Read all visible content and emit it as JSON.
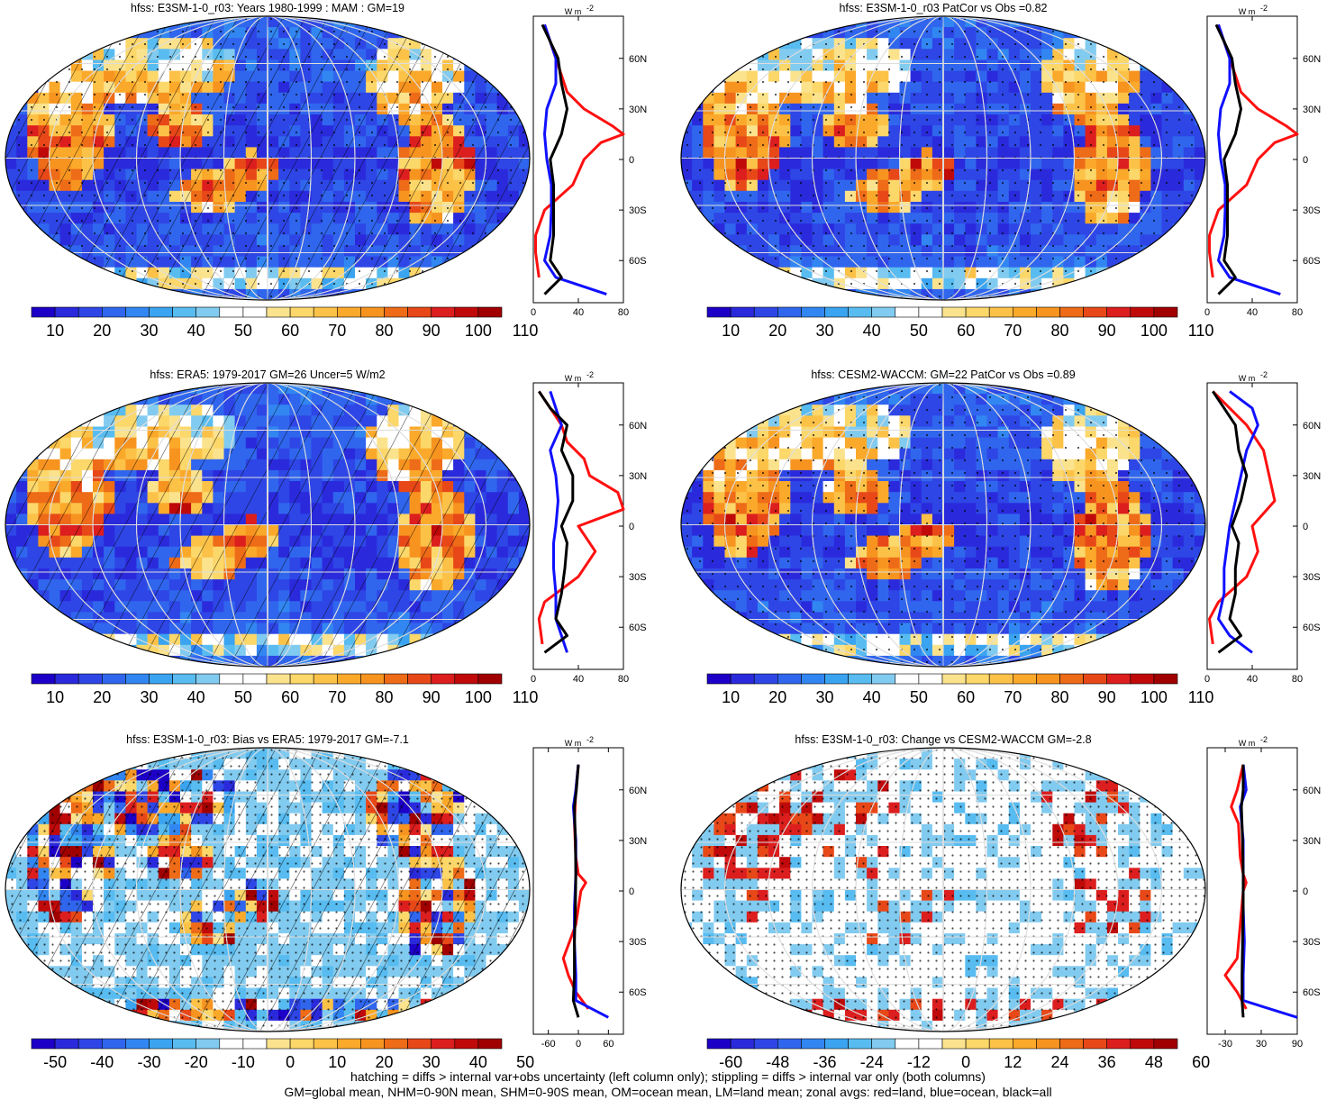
{
  "panels": [
    {
      "title": "hfss: E3SM-1-0_r03: Years 1980-1999 : MAM : GM=19",
      "kind": "clim",
      "hatch": true,
      "stipple": "sparse",
      "profile_ticks": [
        "0",
        "40",
        "80"
      ],
      "profile_range": [
        0,
        80
      ]
    },
    {
      "title": "hfss: E3SM-1-0_r03 PatCor vs Obs =0.82",
      "kind": "clim",
      "hatch": false,
      "stipple": "sparse",
      "profile_ticks": [
        "0",
        "40",
        "80"
      ],
      "profile_range": [
        0,
        80
      ]
    },
    {
      "title": "hfss: ERA5: 1979-2017 GM=26 Uncer=5 W/m2",
      "kind": "clim",
      "hatch": true,
      "stipple": "none",
      "profile_ticks": [
        "0",
        "40",
        "80"
      ],
      "profile_range": [
        0,
        80
      ]
    },
    {
      "title": "hfss: CESM2-WACCM: GM=22 PatCor vs Obs =0.89",
      "kind": "clim",
      "hatch": false,
      "stipple": "sparse",
      "profile_ticks": [
        "0",
        "40",
        "80"
      ],
      "profile_range": [
        0,
        80
      ]
    },
    {
      "title": "hfss: E3SM-1-0_r03: Bias vs ERA5: 1979-2017 GM=-7.1",
      "kind": "diff",
      "hatch": true,
      "stipple": "dense",
      "profile_ticks": [
        "-60",
        "0",
        "60"
      ],
      "profile_range": [
        -90,
        90
      ]
    },
    {
      "title": "hfss: E3SM-1-0_r03: Change vs CESM2-WACCM GM=-2.8",
      "kind": "change",
      "hatch": false,
      "stipple": "dense",
      "profile_ticks": [
        "-30",
        "30",
        "90"
      ],
      "profile_range": [
        -60,
        90
      ]
    }
  ],
  "profile": {
    "unit_label": "W m",
    "unit_exp": "-2",
    "lat_labels": [
      "60N",
      "30N",
      "0",
      "30S",
      "60S"
    ]
  },
  "colorbars": {
    "clim": [
      "10",
      "20",
      "30",
      "40",
      "50",
      "60",
      "70",
      "80",
      "90",
      "100",
      "110"
    ],
    "diff": [
      "-50",
      "-40",
      "-30",
      "-20",
      "-10",
      "0",
      "10",
      "20",
      "30",
      "40",
      "50"
    ],
    "change": [
      "-60",
      "-48",
      "-36",
      "-24",
      "-12",
      "0",
      "12",
      "24",
      "36",
      "48",
      "60"
    ]
  },
  "palette": [
    "#1d00c8",
    "#2a2adc",
    "#2e46e6",
    "#3066ee",
    "#3286f2",
    "#3aa4f0",
    "#58bcf0",
    "#82cbf0",
    "#ffffff",
    "#ffffff",
    "#fbe38e",
    "#fcd76a",
    "#fcc248",
    "#fba92a",
    "#f79420",
    "#ee6b18",
    "#e84818",
    "#dc1e1e",
    "#c00a0a",
    "#a00000"
  ],
  "chart_data": [
    {
      "type": "line",
      "title": "hfss: E3SM-1-0_r03: Years 1980-1999 : MAM : GM=19",
      "xlabel": "W m-2",
      "ylabel": "",
      "xlim": [
        0,
        80
      ],
      "ylim": [
        -80,
        80
      ],
      "series": [
        {
          "name": "red=land",
          "lat": [
            -70,
            -55,
            -45,
            -30,
            -15,
            0,
            10,
            15,
            20,
            30,
            40,
            50,
            60,
            70,
            80
          ],
          "values": [
            5,
            2,
            2,
            10,
            35,
            45,
            60,
            80,
            70,
            45,
            30,
            25,
            20,
            15,
            10
          ]
        },
        {
          "name": "blue= ocean",
          "lat": [
            -80,
            -70,
            -60,
            -45,
            -30,
            -15,
            0,
            15,
            30,
            45,
            60,
            70,
            80
          ],
          "values": [
            65,
            20,
            10,
            15,
            16,
            16,
            12,
            10,
            12,
            20,
            20,
            15,
            10
          ]
        },
        {
          "name": "black=all",
          "lat": [
            -80,
            -70,
            -60,
            -45,
            -30,
            -15,
            0,
            15,
            30,
            45,
            60,
            70,
            80
          ],
          "values": [
            10,
            25,
            15,
            18,
            18,
            18,
            15,
            25,
            30,
            25,
            22,
            15,
            8
          ]
        }
      ]
    },
    {
      "type": "line",
      "title": "hfss: E3SM-1-0_r03 PatCor vs Obs =0.82",
      "xlabel": "W m-2",
      "ylabel": "",
      "xlim": [
        0,
        80
      ],
      "ylim": [
        -80,
        80
      ],
      "series": [
        {
          "name": "red=land",
          "lat": [
            -70,
            -55,
            -45,
            -30,
            -15,
            0,
            10,
            15,
            20,
            30,
            40,
            50,
            60,
            70,
            80
          ],
          "values": [
            5,
            2,
            2,
            10,
            35,
            45,
            60,
            80,
            70,
            45,
            30,
            25,
            20,
            15,
            10
          ]
        },
        {
          "name": "blue=ocean",
          "lat": [
            -80,
            -70,
            -60,
            -45,
            -30,
            -15,
            0,
            15,
            30,
            45,
            60,
            70,
            80
          ],
          "values": [
            65,
            20,
            10,
            15,
            16,
            16,
            12,
            10,
            12,
            20,
            20,
            15,
            10
          ]
        },
        {
          "name": "black=all",
          "lat": [
            -80,
            -70,
            -60,
            -45,
            -30,
            -15,
            0,
            15,
            30,
            45,
            60,
            70,
            80
          ],
          "values": [
            10,
            25,
            15,
            18,
            18,
            18,
            15,
            25,
            30,
            25,
            22,
            15,
            8
          ]
        }
      ]
    },
    {
      "type": "line",
      "title": "hfss: ERA5: 1979-2017 GM=26 Uncer=5 W/m2",
      "xlabel": "W m-2",
      "ylabel": "",
      "xlim": [
        0,
        80
      ],
      "ylim": [
        -80,
        80
      ],
      "series": [
        {
          "name": "red=land",
          "lat": [
            -70,
            -55,
            -45,
            -30,
            -15,
            0,
            10,
            20,
            30,
            40,
            50,
            60,
            70,
            80
          ],
          "values": [
            8,
            5,
            10,
            40,
            55,
            40,
            80,
            75,
            50,
            45,
            30,
            25,
            15,
            5
          ]
        },
        {
          "name": "blue=ocean",
          "lat": [
            -75,
            -65,
            -55,
            -40,
            -25,
            -10,
            0,
            15,
            30,
            45,
            60,
            70,
            80
          ],
          "values": [
            30,
            25,
            20,
            20,
            18,
            18,
            20,
            22,
            20,
            15,
            25,
            20,
            15
          ]
        },
        {
          "name": "black=all",
          "lat": [
            -75,
            -65,
            -55,
            -40,
            -25,
            -10,
            0,
            15,
            30,
            45,
            60,
            70,
            80
          ],
          "values": [
            10,
            30,
            20,
            25,
            28,
            30,
            25,
            35,
            35,
            25,
            30,
            15,
            5
          ]
        }
      ]
    },
    {
      "type": "line",
      "title": "hfss: CESM2-WACCM: GM=22 PatCor vs Obs =0.89",
      "xlabel": "W m-2",
      "ylabel": "",
      "xlim": [
        0,
        80
      ],
      "ylim": [
        -80,
        80
      ],
      "series": [
        {
          "name": "red=land",
          "lat": [
            -70,
            -55,
            -45,
            -30,
            -15,
            0,
            15,
            30,
            45,
            60,
            70,
            80
          ],
          "values": [
            5,
            2,
            10,
            35,
            45,
            40,
            60,
            55,
            50,
            35,
            20,
            5
          ]
        },
        {
          "name": "blue=ocean",
          "lat": [
            -75,
            -65,
            -55,
            -40,
            -25,
            -10,
            0,
            15,
            30,
            45,
            60,
            70,
            80
          ],
          "values": [
            40,
            20,
            10,
            15,
            15,
            18,
            20,
            25,
            30,
            35,
            45,
            40,
            20
          ]
        },
        {
          "name": "black=all",
          "lat": [
            -75,
            -65,
            -55,
            -40,
            -25,
            -10,
            0,
            15,
            30,
            45,
            60,
            70,
            80
          ],
          "values": [
            10,
            30,
            20,
            25,
            25,
            28,
            22,
            30,
            35,
            28,
            25,
            15,
            5
          ]
        }
      ]
    },
    {
      "type": "line",
      "title": "hfss: E3SM-1-0_r03: Bias vs ERA5: 1979-2017 GM=-7.1",
      "xlabel": "W m-2",
      "ylabel": "",
      "xlim": [
        -90,
        90
      ],
      "ylim": [
        -80,
        80
      ],
      "series": [
        {
          "name": "red=land",
          "lat": [
            -70,
            -60,
            -50,
            -40,
            -20,
            0,
            5,
            10,
            20,
            40,
            60,
            75
          ],
          "values": [
            20,
            -5,
            -20,
            -30,
            -5,
            5,
            15,
            0,
            -5,
            -8,
            -5,
            0
          ]
        },
        {
          "name": "blue=ocean",
          "lat": [
            -75,
            -65,
            -50,
            -30,
            -10,
            10,
            30,
            50,
            60,
            75
          ],
          "values": [
            60,
            -5,
            -5,
            -8,
            -8,
            -5,
            -5,
            -10,
            -5,
            0
          ]
        },
        {
          "name": "black=all",
          "lat": [
            -75,
            -65,
            -50,
            -30,
            -10,
            10,
            30,
            50,
            60,
            75
          ],
          "values": [
            0,
            -10,
            -8,
            -8,
            -6,
            -5,
            -6,
            -8,
            -4,
            0
          ]
        }
      ]
    },
    {
      "type": "line",
      "title": "hfss: E3SM-1-0_r03: Change vs CESM2-WACCM GM=-2.8",
      "xlabel": "W m-2",
      "ylabel": "",
      "xlim": [
        -60,
        90
      ],
      "ylim": [
        -80,
        80
      ],
      "series": [
        {
          "name": "red=land",
          "lat": [
            -70,
            -60,
            -50,
            -40,
            -20,
            0,
            5,
            10,
            20,
            40,
            50,
            60,
            75
          ],
          "values": [
            5,
            -10,
            -30,
            -10,
            -5,
            0,
            5,
            0,
            -5,
            -8,
            -20,
            -10,
            0
          ]
        },
        {
          "name": "blue=ocean",
          "lat": [
            -75,
            -65,
            -50,
            -30,
            -10,
            10,
            30,
            50,
            60,
            75
          ],
          "values": [
            90,
            0,
            0,
            2,
            0,
            0,
            0,
            -5,
            5,
            0
          ]
        },
        {
          "name": "black=all",
          "lat": [
            -75,
            -65,
            -50,
            -30,
            -10,
            10,
            30,
            50,
            60,
            75
          ],
          "values": [
            0,
            -2,
            -2,
            -1,
            0,
            0,
            -1,
            -3,
            0,
            0
          ]
        }
      ]
    }
  ],
  "footer": {
    "line1": "hatching = diffs > internal var+obs uncertainty (left column only); stippling = diffs > internal var only (both columns)",
    "line2": "GM=global mean, NHM=0-90N mean, SHM=0-90S mean, OM=ocean mean, LM=land mean; zonal avgs: red=land, blue=ocean, black=all"
  }
}
